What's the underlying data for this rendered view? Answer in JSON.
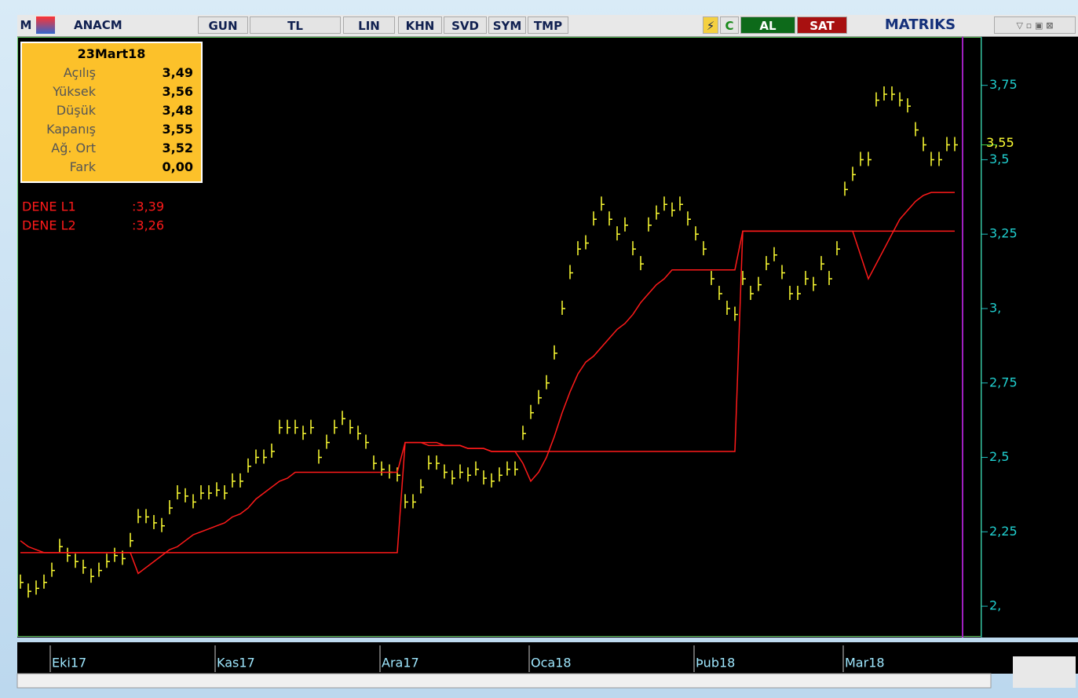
{
  "toolbar": {
    "symbol": "ANACM",
    "buttons": [
      "GUN",
      "TL",
      "LIN",
      "KHN",
      "SVD",
      "SYM",
      "TMP"
    ],
    "buy": "AL",
    "sell": "SAT",
    "brand": "MATRIKS"
  },
  "info": {
    "date": "23Mart18",
    "rows": [
      {
        "label": "Açılış",
        "value": "3,49"
      },
      {
        "label": "Yüksek",
        "value": "3,56"
      },
      {
        "label": "Düşük",
        "value": "3,48"
      },
      {
        "label": "Kapanış",
        "value": "3,55"
      },
      {
        "label": "Ağ. Ort",
        "value": "3,52"
      },
      {
        "label": "Fark",
        "value": "0,00"
      }
    ]
  },
  "chart_data": {
    "type": "price",
    "color": "#ffff33",
    "current_label": "3,55",
    "categories": [
      null,
      null,
      null,
      null,
      "Eki17",
      null,
      null,
      null,
      null,
      null,
      null,
      null,
      null,
      null,
      null,
      null,
      null,
      null,
      null,
      null,
      null,
      null,
      null,
      null,
      null,
      "Kas17",
      null,
      null,
      null,
      null,
      null,
      null,
      null,
      null,
      null,
      null,
      null,
      null,
      null,
      null,
      null,
      null,
      null,
      null,
      null,
      null,
      "Ara17",
      null,
      null,
      null,
      null,
      null,
      null,
      null,
      null,
      null,
      null,
      null,
      null,
      null,
      null,
      null,
      null,
      null,
      null,
      "Oca18",
      null,
      null,
      null,
      null,
      null,
      null,
      null,
      null,
      null,
      null,
      null,
      null,
      null,
      null,
      null,
      null,
      null,
      null,
      null,
      null,
      "Þub18",
      null,
      null,
      null,
      null,
      null,
      null,
      null,
      null,
      null,
      null,
      null,
      null,
      null,
      null,
      null,
      null,
      null,
      null,
      "Mar18",
      null,
      null,
      null,
      null,
      null,
      null,
      null,
      null,
      null,
      null,
      null,
      null,
      null,
      null
    ],
    "values": [
      2.08,
      2.05,
      2.06,
      2.08,
      2.12,
      2.2,
      2.17,
      2.15,
      2.13,
      2.1,
      2.12,
      2.15,
      2.17,
      2.16,
      2.22,
      2.3,
      2.3,
      2.28,
      2.27,
      2.33,
      2.38,
      2.37,
      2.35,
      2.38,
      2.38,
      2.39,
      2.38,
      2.42,
      2.42,
      2.47,
      2.5,
      2.5,
      2.52,
      2.6,
      2.6,
      2.6,
      2.58,
      2.6,
      2.5,
      2.55,
      2.6,
      2.63,
      2.6,
      2.58,
      2.55,
      2.48,
      2.46,
      2.45,
      2.44,
      2.35,
      2.35,
      2.4,
      2.48,
      2.48,
      2.45,
      2.43,
      2.45,
      2.44,
      2.46,
      2.43,
      2.42,
      2.44,
      2.46,
      2.46,
      2.58,
      2.65,
      2.7,
      2.75,
      2.85,
      3.0,
      3.12,
      3.2,
      3.22,
      3.3,
      3.35,
      3.3,
      3.25,
      3.28,
      3.2,
      3.15,
      3.28,
      3.32,
      3.35,
      3.33,
      3.35,
      3.3,
      3.25,
      3.2,
      3.1,
      3.05,
      3.0,
      2.98,
      3.1,
      3.05,
      3.08,
      3.15,
      3.18,
      3.12,
      3.05,
      3.05,
      3.1,
      3.08,
      3.15,
      3.1,
      3.2,
      3.4,
      3.45,
      3.5,
      3.5,
      3.7,
      3.72,
      3.72,
      3.7,
      3.68,
      3.6,
      3.55,
      3.5,
      3.5,
      3.55,
      3.55
    ],
    "indicators": [
      {
        "name": "DENE L1",
        "color": "#ff1a1a",
        "last_label": ":3,39",
        "values": [
          2.22,
          2.2,
          2.19,
          2.18,
          2.18,
          2.18,
          2.18,
          2.18,
          2.18,
          2.18,
          2.18,
          2.18,
          2.18,
          2.18,
          2.18,
          2.11,
          2.13,
          2.15,
          2.17,
          2.19,
          2.2,
          2.22,
          2.24,
          2.25,
          2.26,
          2.27,
          2.28,
          2.3,
          2.31,
          2.33,
          2.36,
          2.38,
          2.4,
          2.42,
          2.43,
          2.45,
          2.45,
          2.45,
          2.45,
          2.45,
          2.45,
          2.45,
          2.45,
          2.45,
          2.45,
          2.45,
          2.45,
          2.45,
          2.45,
          2.55,
          2.55,
          2.55,
          2.55,
          2.55,
          2.54,
          2.54,
          2.54,
          2.53,
          2.53,
          2.53,
          2.52,
          2.52,
          2.52,
          2.52,
          2.48,
          2.42,
          2.45,
          2.5,
          2.57,
          2.65,
          2.72,
          2.78,
          2.82,
          2.84,
          2.87,
          2.9,
          2.93,
          2.95,
          2.98,
          3.02,
          3.05,
          3.08,
          3.1,
          3.13,
          3.13,
          3.13,
          3.13,
          3.13,
          3.13,
          3.13,
          3.13,
          3.13,
          3.26,
          3.26,
          3.26,
          3.26,
          3.26,
          3.26,
          3.26,
          3.26,
          3.26,
          3.26,
          3.26,
          3.26,
          3.26,
          3.26,
          3.26,
          3.18,
          3.1,
          3.15,
          3.2,
          3.25,
          3.3,
          3.33,
          3.36,
          3.38,
          3.39,
          3.39,
          3.39,
          3.39
        ]
      },
      {
        "name": "DENE L2",
        "color": "#ff1a1a",
        "last_label": ":3,26",
        "values": [
          2.18,
          2.18,
          2.18,
          2.18,
          2.18,
          2.18,
          2.18,
          2.18,
          2.18,
          2.18,
          2.18,
          2.18,
          2.18,
          2.18,
          2.18,
          2.18,
          2.18,
          2.18,
          2.18,
          2.18,
          2.18,
          2.18,
          2.18,
          2.18,
          2.18,
          2.18,
          2.18,
          2.18,
          2.18,
          2.18,
          2.18,
          2.18,
          2.18,
          2.18,
          2.18,
          2.18,
          2.18,
          2.18,
          2.18,
          2.18,
          2.18,
          2.18,
          2.18,
          2.18,
          2.18,
          2.18,
          2.18,
          2.18,
          2.18,
          2.55,
          2.55,
          2.55,
          2.54,
          2.54,
          2.54,
          2.54,
          2.54,
          2.53,
          2.53,
          2.53,
          2.52,
          2.52,
          2.52,
          2.52,
          2.52,
          2.52,
          2.52,
          2.52,
          2.52,
          2.52,
          2.52,
          2.52,
          2.52,
          2.52,
          2.52,
          2.52,
          2.52,
          2.52,
          2.52,
          2.52,
          2.52,
          2.52,
          2.52,
          2.52,
          2.52,
          2.52,
          2.52,
          2.52,
          2.52,
          2.52,
          2.52,
          2.52,
          3.26,
          3.26,
          3.26,
          3.26,
          3.26,
          3.26,
          3.26,
          3.26,
          3.26,
          3.26,
          3.26,
          3.26,
          3.26,
          3.26,
          3.26,
          3.26,
          3.26,
          3.26,
          3.26,
          3.26,
          3.26,
          3.26,
          3.26,
          3.26,
          3.26,
          3.26,
          3.26,
          3.26
        ]
      }
    ],
    "ylim": [
      1.9,
      3.91
    ],
    "yticks": [
      {
        "value": 2,
        "label": "2,"
      },
      {
        "value": 2.25,
        "label": "2,25"
      },
      {
        "value": 2.5,
        "label": "2,5"
      },
      {
        "value": 2.75,
        "label": "2,75"
      },
      {
        "value": 3,
        "label": "3,"
      },
      {
        "value": 3.25,
        "label": "3,25"
      },
      {
        "value": 3.5,
        "label": "3,5"
      },
      {
        "value": 3.75,
        "label": "3,75"
      }
    ]
  }
}
